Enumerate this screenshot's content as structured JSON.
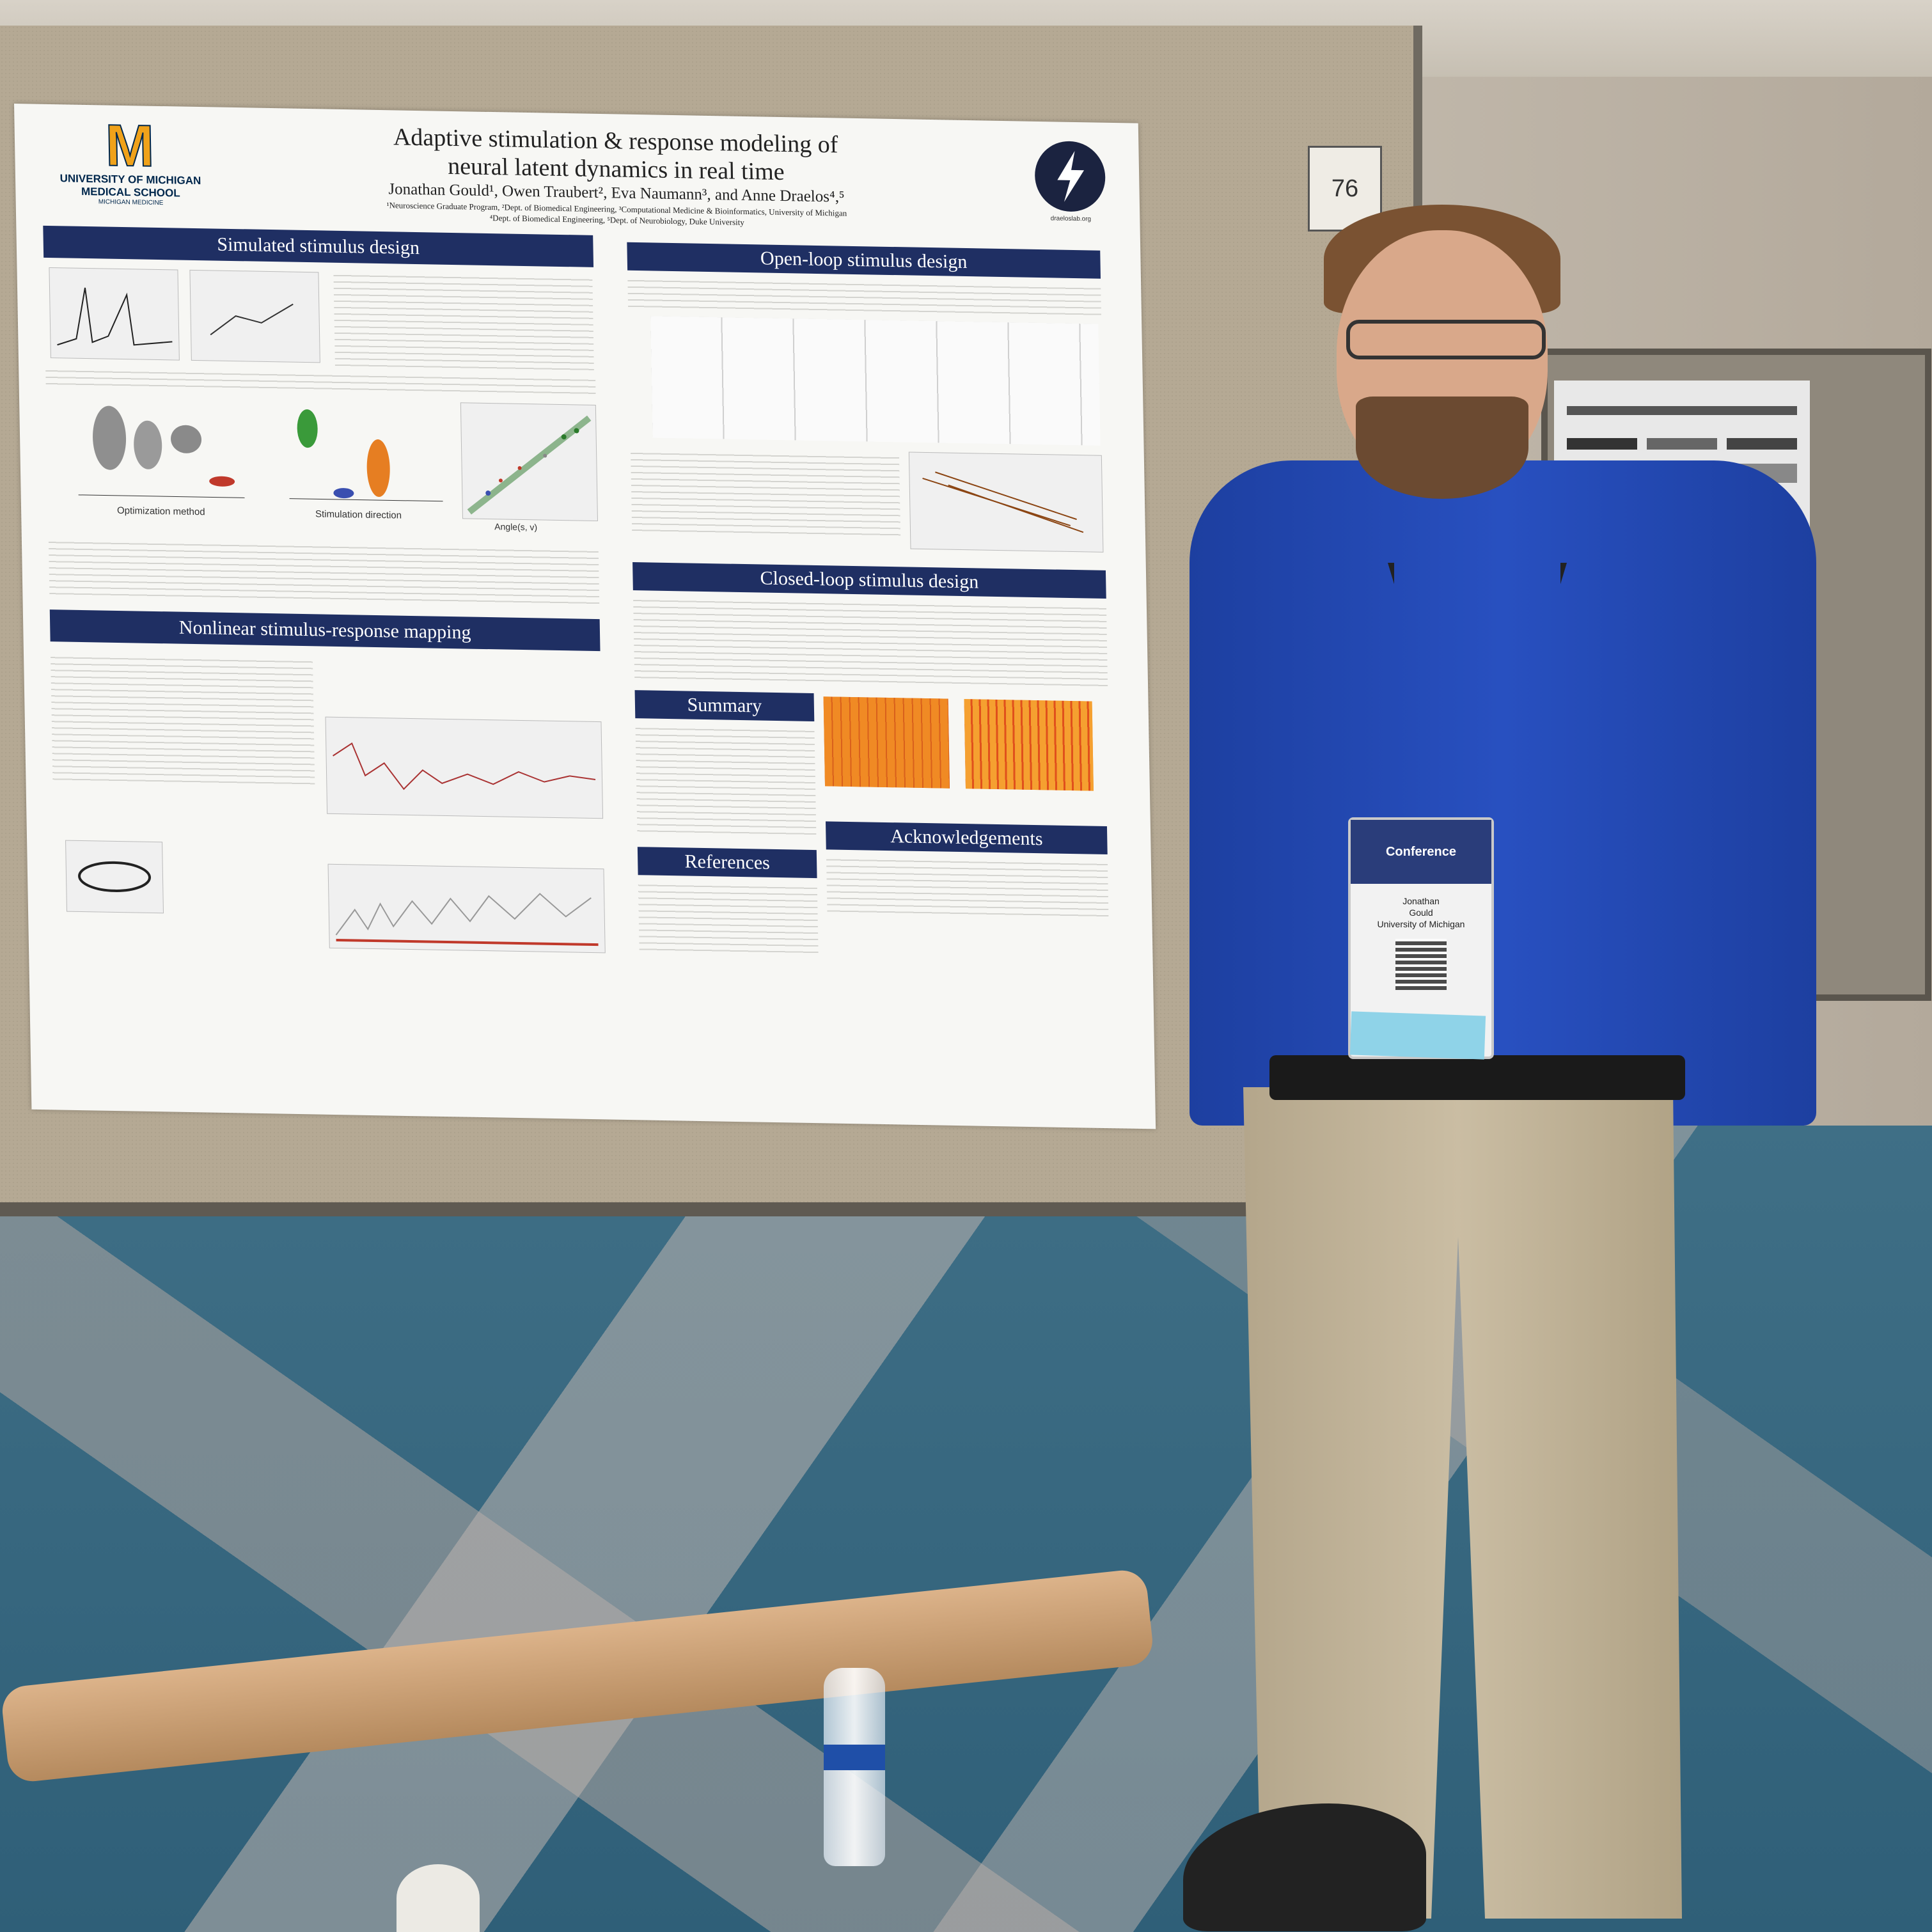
{
  "poster": {
    "logo_letter": "M",
    "institution_line1": "UNIVERSITY OF MICHIGAN",
    "institution_line2": "MEDICAL SCHOOL",
    "institution_line3": "MICHIGAN MEDICINE",
    "title_line1": "Adaptive stimulation & response modeling of",
    "title_line2": "neural latent dynamics in real time",
    "authors": "Jonathan Gould¹, Owen Traubert², Eva Naumann³, and Anne Draelos⁴,⁵",
    "affiliations_line1": "¹Neuroscience Graduate Program, ²Dept. of Biomedical Engineering, ³Computational Medicine & Bioinformatics, University of Michigan",
    "affiliations_line2": "⁴Dept. of Biomedical Engineering, ⁵Dept. of Neurobiology, Duke University",
    "lab_url": "draeloslab.org",
    "sections": {
      "simulated": "Simulated stimulus design",
      "open_loop": "Open-loop stimulus design",
      "nonlinear": "Nonlinear stimulus-response mapping",
      "closed_loop": "Closed-loop stimulus design",
      "summary": "Summary",
      "references": "References",
      "acknowledgements": "Acknowledgements"
    },
    "axis_labels": {
      "optimization_method": "Optimization method",
      "stimulation_direction": "Stimulation direction",
      "angle": "Angle(s, v)"
    }
  },
  "board_number": "76",
  "badge": {
    "conference": "Conference",
    "name_first": "Jonathan",
    "name_last": "Gould",
    "affiliation": "University of Michigan"
  },
  "colors": {
    "section_header": "#1f2f63",
    "michigan_maize": "#f0a21a",
    "shirt": "#2850c0",
    "carpet": "#3f6f86"
  }
}
